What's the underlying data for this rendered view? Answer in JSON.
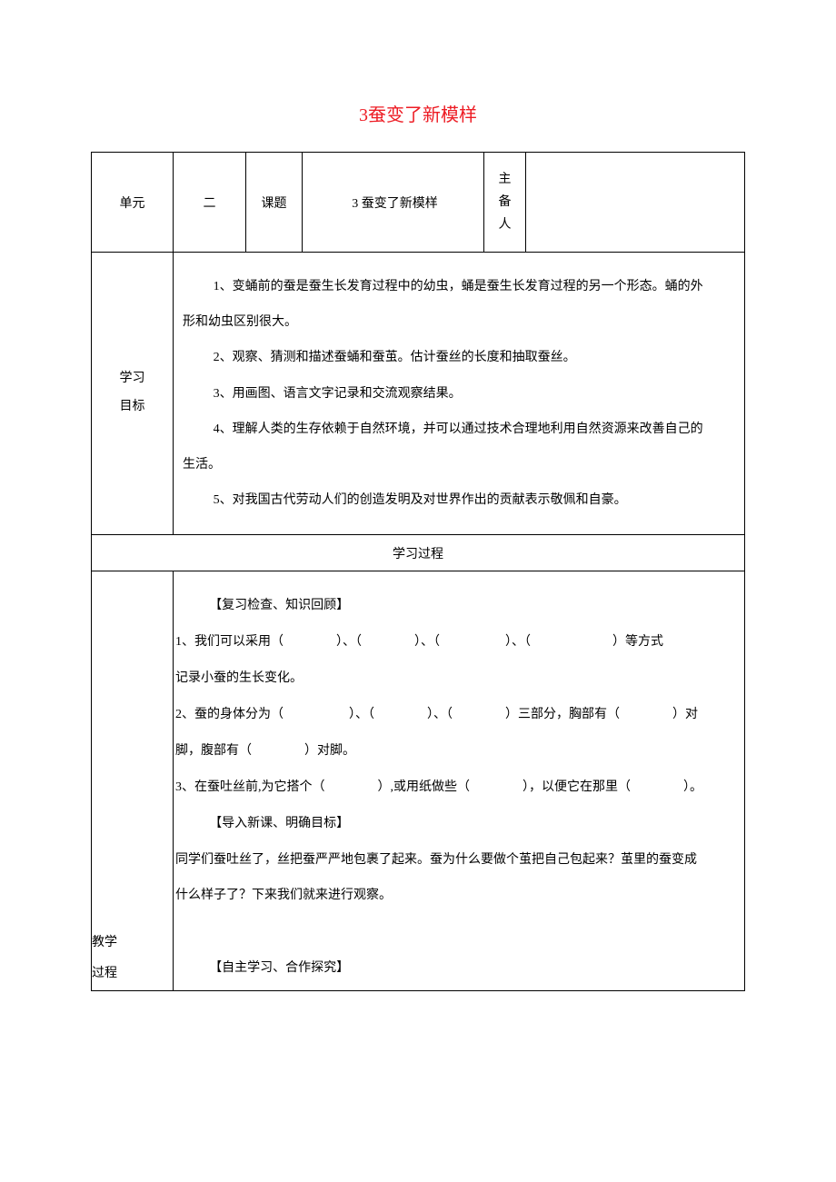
{
  "title": "3蚕变了新模样",
  "colors": {
    "title_color": "#ed1c24",
    "text_color": "#000000",
    "border_color": "#000000",
    "background": "#ffffff"
  },
  "typography": {
    "title_fontsize": 20,
    "body_fontsize": 14,
    "font_family": "SimSun"
  },
  "header": {
    "unit_label": "单元",
    "unit_value": "二",
    "topic_label": "课题",
    "topic_value": "3 蚕变了新模样",
    "author_label_1": "主",
    "author_label_2": "备",
    "author_label_3": "人",
    "author_value": ""
  },
  "goals": {
    "label_1": "学习",
    "label_2": "目标",
    "items": [
      "1、变蛹前的蚕是蚕生长发育过程中的幼虫，蛹是蚕生长发育过程的另一个形态。蛹的外",
      "形和幼虫区别很大。",
      "2、观察、猜测和描述蚕蛹和蚕茧。估计蚕丝的长度和抽取蚕丝。",
      "3、用画图、语言文字记录和交流观察结果。",
      "4、理解人类的生存依赖于自然环境，并可以通过技术合理地利用自然资源来改善自己的",
      "生活。",
      "5、对我国古代劳动人们的创造发明及对世界作出的贡献表示敬佩和自豪。"
    ]
  },
  "process_header": "学习过程",
  "process": {
    "label_1": "教学",
    "label_2": "过程",
    "section1_head": "【复习检查、知识回顾】",
    "q1_a": "1、我们可以采用（",
    "q1_b": "）、（",
    "q1_c": "）、（",
    "q1_d": "）、（",
    "q1_e": "）等方式",
    "q1_line2": "记录小蚕的生长变化。",
    "q2_a": "2、蚕的身体分为（",
    "q2_b": "）、（",
    "q2_c": "）、（",
    "q2_d": "）三部分，胸部有（",
    "q2_e": "）对",
    "q2_line2a": "脚，腹部有（",
    "q2_line2b": "）对脚。",
    "q3_a": "3、在蚕吐丝前,为它搭个（",
    "q3_b": "）,或用纸做些（",
    "q3_c": "），以便它在那里（",
    "q3_d": "）。",
    "section2_head": "【导入新课、明确目标】",
    "intro_1": "同学们蚕吐丝了，丝把蚕严严地包裹了起来。蚕为什么要做个茧把自己包起来？茧里的蚕变成",
    "intro_2": "什么样子了？下来我们就来进行观察。",
    "section3_head": "【自主学习、合作探究】"
  }
}
